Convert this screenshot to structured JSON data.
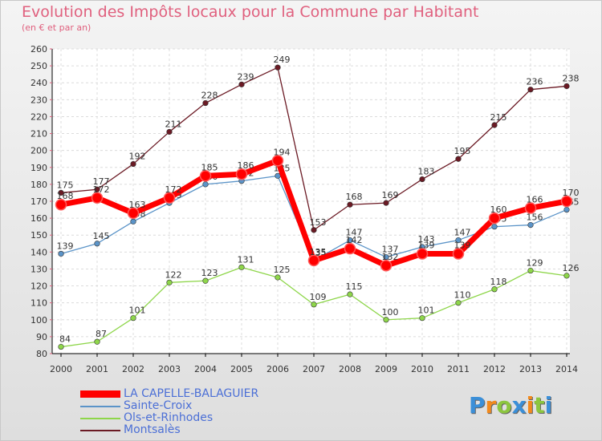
{
  "chart_data": {
    "type": "line",
    "title": "Evolution des Impôts locaux pour la Commune par Habitant",
    "subtitle": "(en € et par an)",
    "xlabel": "",
    "ylabel": "",
    "ylim": [
      80,
      260
    ],
    "yticks": [
      80,
      90,
      100,
      110,
      120,
      130,
      140,
      150,
      160,
      170,
      180,
      190,
      200,
      210,
      220,
      230,
      240,
      250,
      260
    ],
    "categories": [
      "2000",
      "2001",
      "2002",
      "2003",
      "2004",
      "2005",
      "2006",
      "2007",
      "2008",
      "2009",
      "2010",
      "2011",
      "2012",
      "2013",
      "2014"
    ],
    "series": [
      {
        "name": "Montsalès",
        "color": "#6b1a24",
        "values": [
          175,
          177,
          192,
          211,
          228,
          239,
          249,
          153,
          168,
          169,
          183,
          195,
          215,
          236,
          238
        ]
      },
      {
        "name": "Ols-et-Rinhodes",
        "color": "#8ed64a",
        "values": [
          84,
          87,
          101,
          122,
          123,
          131,
          125,
          109,
          115,
          100,
          101,
          110,
          118,
          129,
          126
        ]
      },
      {
        "name": "Sainte-Croix",
        "color": "#5b94c8",
        "values": [
          139,
          145,
          158,
          169,
          180,
          182,
          185,
          135,
          147,
          137,
          143,
          147,
          155,
          156,
          165
        ]
      },
      {
        "name": "LA CAPELLE-BALAGUIER",
        "color": "#ff0000",
        "values": [
          168,
          172,
          163,
          172,
          185,
          186,
          194,
          135,
          142,
          132,
          139,
          139,
          160,
          166,
          170
        ]
      }
    ],
    "legend": [
      "LA CAPELLE-BALAGUIER",
      "Sainte-Croix",
      "Ols-et-Rinhodes",
      "Montsalès"
    ],
    "legend_position": "bottom-left"
  },
  "logo": {
    "text": "Proxiti",
    "letters": [
      "P",
      "r",
      "o",
      "x",
      "i",
      "t",
      "i"
    ],
    "colors": [
      "#3b8fd8",
      "#f28a1d",
      "#8cc63f",
      "#3b8fd8",
      "#f28a1d",
      "#8cc63f",
      "#3b8fd8"
    ]
  }
}
